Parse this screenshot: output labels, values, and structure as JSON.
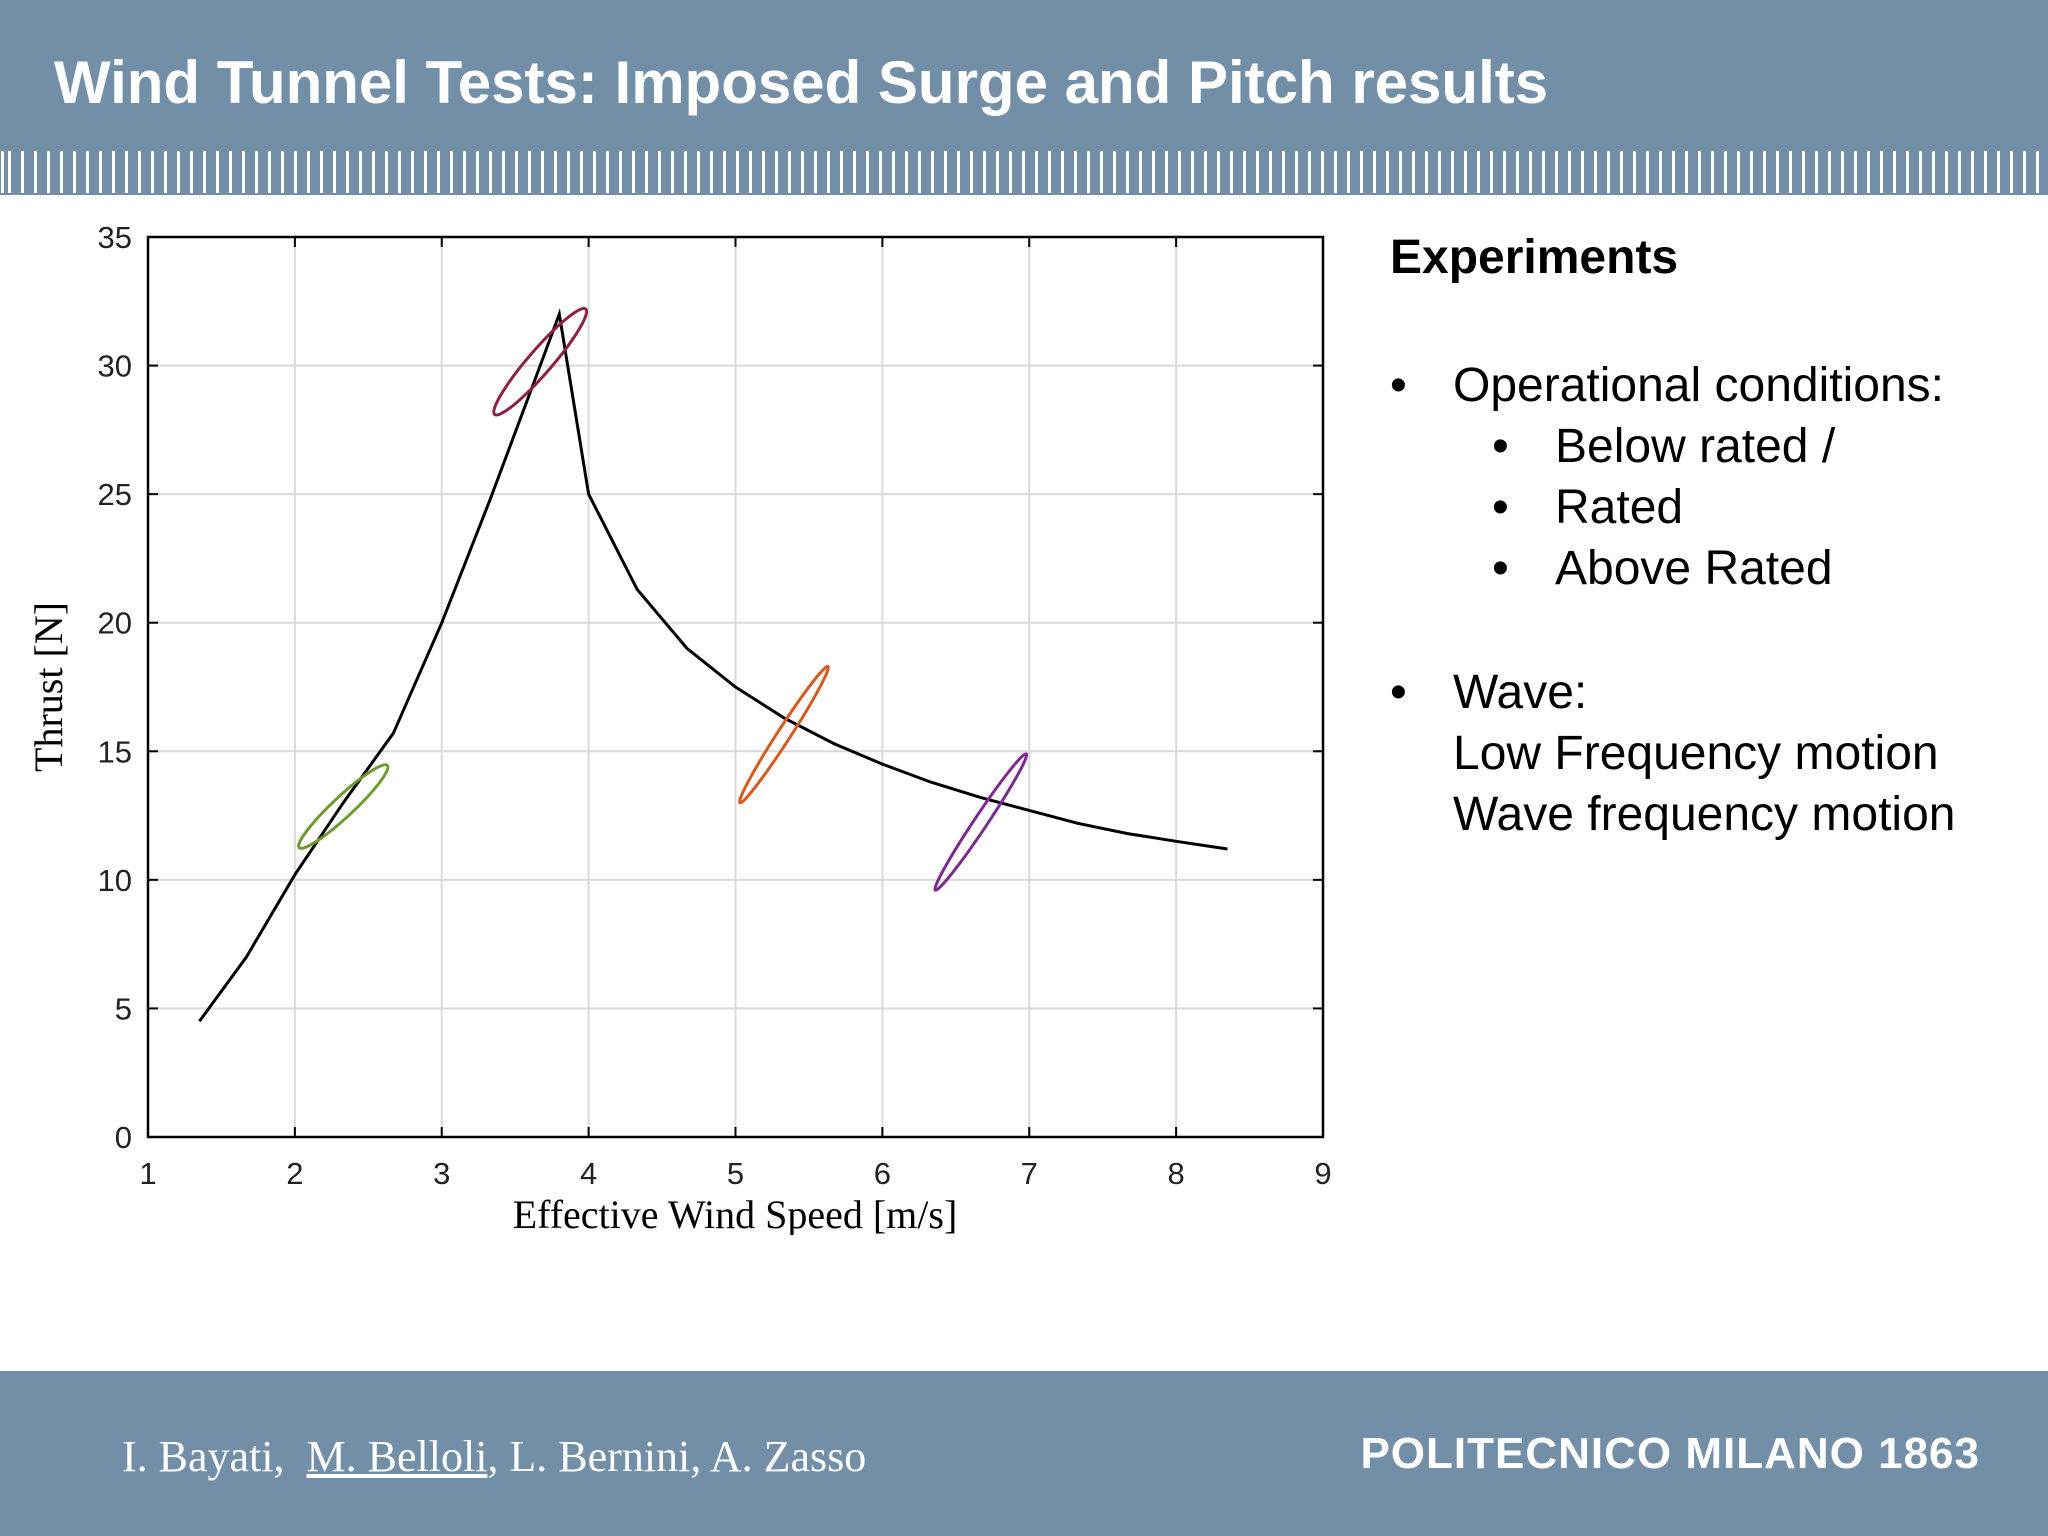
{
  "slide": {
    "title": "Wind Tunnel Tests: Imposed Surge and Pitch results"
  },
  "panel": {
    "heading": "Experiments",
    "bullets": [
      "Operational conditions:",
      "Below rated /",
      "Rated",
      "Above Rated",
      "Wave:",
      "Low Frequency motion",
      "Wave frequency motion"
    ]
  },
  "footer": {
    "author_1": "I. Bayati,",
    "author_2": "M. Belloli",
    "author_3": ", L. Bernini, A. Zasso",
    "logo": "POLITECNICO MILANO 1863"
  },
  "chart_data": {
    "type": "line",
    "title": "",
    "xlabel": "Effective Wind Speed [m/s]",
    "ylabel": "Thrust [N]",
    "xlim": [
      1,
      9
    ],
    "ylim": [
      0,
      35
    ],
    "xticks": [
      1,
      2,
      3,
      4,
      5,
      6,
      7,
      8,
      9
    ],
    "yticks": [
      0,
      5,
      10,
      15,
      20,
      25,
      30,
      35
    ],
    "grid": true,
    "curve": {
      "color": "#000000",
      "x": [
        1.35,
        1.67,
        2.0,
        2.33,
        2.67,
        3.0,
        3.33,
        3.67,
        3.8,
        4.0,
        4.33,
        4.67,
        5.0,
        5.33,
        5.67,
        6.0,
        6.33,
        6.67,
        7.0,
        7.33,
        7.67,
        8.0,
        8.35
      ],
      "y": [
        4.5,
        7.0,
        10.2,
        13.0,
        15.7,
        20.0,
        24.8,
        30.0,
        32.0,
        25.0,
        21.3,
        19.0,
        17.5,
        16.3,
        15.3,
        14.5,
        13.8,
        13.2,
        12.7,
        12.2,
        11.8,
        11.5,
        11.2
      ]
    },
    "loops": [
      {
        "color": "#6f9b2e",
        "cx": 2.33,
        "cy": 12.85,
        "x_amp": 0.3,
        "y_amp": 1.6,
        "ellipse_ratio": 0.17
      },
      {
        "color": "#8e1f47",
        "cx": 3.67,
        "cy": 30.15,
        "x_amp": 0.31,
        "y_amp": 2.05,
        "ellipse_ratio": 0.17
      },
      {
        "color": "#d55a1d",
        "cx": 5.33,
        "cy": 15.65,
        "x_amp": 0.3,
        "y_amp": 2.65,
        "ellipse_ratio": 0.08
      },
      {
        "color": "#7b2b8f",
        "cx": 6.67,
        "cy": 12.25,
        "x_amp": 0.31,
        "y_amp": 2.65,
        "ellipse_ratio": 0.08
      }
    ]
  }
}
